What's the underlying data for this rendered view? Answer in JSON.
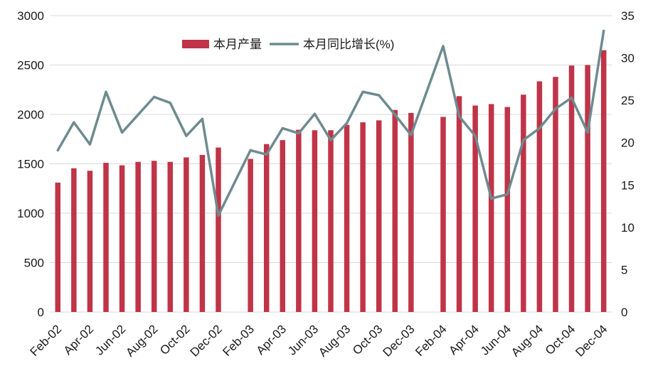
{
  "chart_data": {
    "type": "bar",
    "categories": [
      "Feb-02",
      "",
      "Apr-02",
      "",
      "Jun-02",
      "",
      "Aug-02",
      "",
      "Oct-02",
      "",
      "Dec-02",
      "",
      "Feb-03",
      "",
      "Apr-03",
      "",
      "Jun-03",
      "",
      "Aug-03",
      "",
      "Oct-03",
      "",
      "Dec-03",
      "",
      "Feb-04",
      "",
      "Apr-04",
      "",
      "Jun-04",
      "",
      "Aug-04",
      "",
      "Oct-04",
      "",
      "Dec-04"
    ],
    "series": [
      {
        "name": "本月产量",
        "type": "bar",
        "axis": "left",
        "color": "#BF3448",
        "values": [
          1310,
          1455,
          1430,
          1510,
          1485,
          1520,
          1530,
          1520,
          1565,
          1590,
          1665,
          null,
          1550,
          1700,
          1740,
          1845,
          1840,
          1840,
          1895,
          1920,
          1940,
          2045,
          2015,
          null,
          1975,
          2185,
          2090,
          2105,
          2075,
          2200,
          2335,
          2380,
          2495,
          2500,
          2650
        ]
      },
      {
        "name": "本月同比增长(%)",
        "type": "line",
        "axis": "right",
        "color": "#6E8B8F",
        "values": [
          19.1,
          22.4,
          19.8,
          26.0,
          21.2,
          23.3,
          25.4,
          24.7,
          20.8,
          22.8,
          11.4,
          null,
          19.1,
          18.6,
          21.7,
          21.1,
          23.4,
          20.3,
          22.3,
          26.0,
          25.6,
          23.3,
          20.9,
          null,
          31.4,
          23.1,
          20.8,
          13.4,
          13.9,
          20.3,
          21.7,
          24.0,
          25.3,
          21.2,
          33.2
        ]
      }
    ],
    "y_left": {
      "range": [
        0,
        3000
      ],
      "ticks": [
        "0",
        "500",
        "1000",
        "1500",
        "2000",
        "2500",
        "3000"
      ]
    },
    "y_right": {
      "range": [
        0,
        35
      ],
      "ticks": [
        "0",
        "5",
        "10",
        "15",
        "20",
        "25",
        "30",
        "35"
      ]
    },
    "grid": true,
    "legend": "top-center"
  }
}
